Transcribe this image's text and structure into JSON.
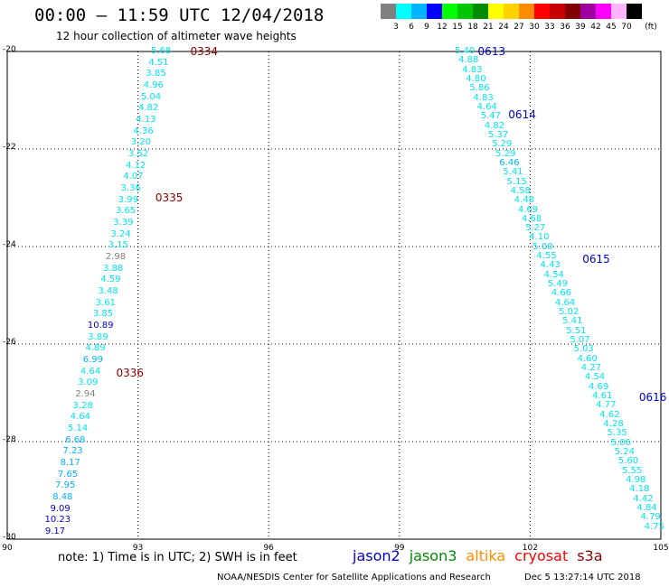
{
  "header": {
    "title": "00:00 – 11:59 UTC 12/04/2018",
    "subtitle": "12 hour collection of altimeter wave heights"
  },
  "legend": {
    "swatches": [
      {
        "color": "#808080",
        "label": "3"
      },
      {
        "color": "#00ffff",
        "label": "6"
      },
      {
        "color": "#00b4ff",
        "label": "9"
      },
      {
        "color": "#0000ff",
        "label": "12"
      },
      {
        "color": "#00ff00",
        "label": "15"
      },
      {
        "color": "#00c800",
        "label": "18"
      },
      {
        "color": "#008c00",
        "label": "21"
      },
      {
        "color": "#ffff00",
        "label": "24"
      },
      {
        "color": "#ffd200",
        "label": "27"
      },
      {
        "color": "#ff8c00",
        "label": "30"
      },
      {
        "color": "#ff0000",
        "label": "33"
      },
      {
        "color": "#c80000",
        "label": "36"
      },
      {
        "color": "#820000",
        "label": "39"
      },
      {
        "color": "#a000a0",
        "label": "42"
      },
      {
        "color": "#ff00ff",
        "label": "45"
      },
      {
        "color": "#ffb4ff",
        "label": "70"
      },
      {
        "color": "#000000",
        "label": ""
      }
    ],
    "unit": "(ft)"
  },
  "chart_data": {
    "type": "scatter",
    "xlim": [
      90,
      105
    ],
    "ylim": [
      -30,
      -20
    ],
    "x_ticks": [
      "90",
      "93",
      "96",
      "99",
      "102",
      "105"
    ],
    "y_ticks": [
      "-20",
      "-22",
      "-24",
      "-26",
      "-28",
      "-30"
    ],
    "grid": true,
    "pass_labels": [
      {
        "text": "0334",
        "lon": 94.2,
        "lat": -20.0,
        "color": "#8b0000"
      },
      {
        "text": "0335",
        "lon": 93.4,
        "lat": -23.0,
        "color": "#8b0000"
      },
      {
        "text": "0336",
        "lon": 92.5,
        "lat": -26.6,
        "color": "#8b0000"
      },
      {
        "text": "0613",
        "lon": 100.8,
        "lat": -20.0,
        "color": "#0000cd"
      },
      {
        "text": "0614",
        "lon": 101.5,
        "lat": -21.3,
        "color": "#0000cd"
      },
      {
        "text": "0615",
        "lon": 103.2,
        "lat": -24.25,
        "color": "#0000cd"
      },
      {
        "text": "0616",
        "lon": 104.5,
        "lat": -27.1,
        "color": "#0000cd"
      }
    ],
    "tracks": [
      {
        "start": [
          93.53,
          -20.0
        ],
        "end": [
          91.1,
          -29.85
        ],
        "values": [
          "5.68",
          "4.51",
          "3.85",
          "4.96",
          "5.04",
          "4.82",
          "4.13",
          "4.36",
          "3.20",
          "3.52",
          "4.12",
          "4.07",
          "3.36",
          "3.99",
          "3.65",
          "3.39",
          "3.24",
          "3.15",
          "2.98",
          "3.88",
          "4.59",
          "3.48",
          "3.61",
          "3.85",
          "10.89",
          "3.89",
          "4.89",
          "6.99",
          "4.64",
          "3.09",
          "2.94",
          "3.28",
          "4.64",
          "5.14",
          "6.68",
          "7.23",
          "8.17",
          "7.65",
          "7.95",
          "8.48",
          "9.09",
          "10.23",
          "9.17"
        ]
      },
      {
        "start": [
          100.5,
          -20.0
        ],
        "end": [
          104.85,
          -29.75
        ],
        "values": [
          "5.40",
          "4.88",
          "4.83",
          "4.80",
          "5.86",
          "4.83",
          "4.64",
          "5.47",
          "4.82",
          "5.37",
          "5.29",
          "5.29",
          "6.46",
          "5.41",
          "5.15",
          "4.58",
          "4.48",
          "4.69",
          "4.68",
          "5.27",
          "4.10",
          "5.00",
          "4.55",
          "4.43",
          "4.54",
          "5.49",
          "4.66",
          "4.64",
          "5.02",
          "5.41",
          "5.51",
          "5.07",
          "5.03",
          "4.60",
          "4.27",
          "4.54",
          "4.69",
          "4.61",
          "4.77",
          "4.62",
          "4.28",
          "5.35",
          "5.06",
          "5.24",
          "5.60",
          "5.55",
          "4.98",
          "4.18",
          "4.42",
          "4.84",
          "4.79",
          "4.75"
        ]
      }
    ]
  },
  "footer": {
    "note": "note: 1) Time is in UTC; 2) SWH is in feet",
    "satellites": [
      {
        "name": "jason2",
        "color": "#0000cd"
      },
      {
        "name": "jason3",
        "color": "#008c00"
      },
      {
        "name": "altika",
        "color": "#ff8c00"
      },
      {
        "name": "cryosat",
        "color": "#ff0000"
      },
      {
        "name": "s3a",
        "color": "#8b0000"
      }
    ],
    "credit": "NOAA/NESDIS Center for Satellite Applications and Research",
    "timestamp": "Dec  5 13:27:14 UTC 2018"
  }
}
